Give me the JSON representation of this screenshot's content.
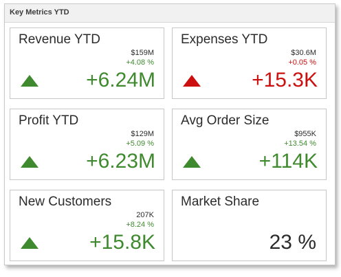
{
  "panel": {
    "title": "Key Metrics YTD"
  },
  "colors": {
    "good": "#3f8a2e",
    "bad": "#cc1010"
  },
  "cards": [
    {
      "title": "Revenue YTD",
      "target": "$159M",
      "variation": "+4.08 %",
      "delta": "+6.24M",
      "status": "good",
      "indicator": "arrow-up-icon"
    },
    {
      "title": "Expenses YTD",
      "target": "$30.6M",
      "variation": "+0.05 %",
      "delta": "+15.3K",
      "status": "bad",
      "indicator": "arrow-up-icon"
    },
    {
      "title": "Profit YTD",
      "target": "$129M",
      "variation": "+5.09 %",
      "delta": "+6.23M",
      "status": "good",
      "indicator": "arrow-up-icon"
    },
    {
      "title": "Avg Order Size",
      "target": "$955K",
      "variation": "+13.54 %",
      "delta": "+114K",
      "status": "good",
      "indicator": "arrow-up-icon"
    },
    {
      "title": "New Customers",
      "target": "207K",
      "variation": "+8.24 %",
      "delta": "+15.8K",
      "status": "good",
      "indicator": "arrow-up-icon"
    },
    {
      "title": "Market Share",
      "value": "23 %"
    }
  ]
}
